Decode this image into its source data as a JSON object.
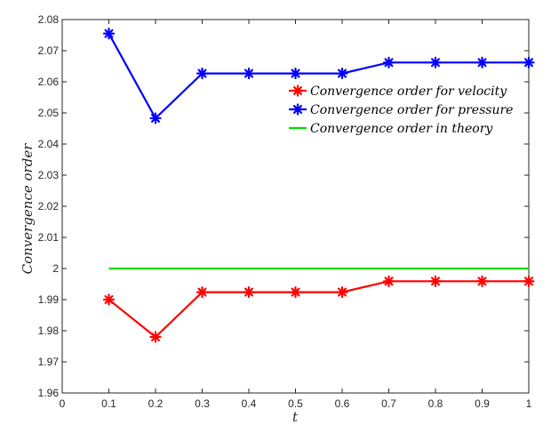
{
  "chart_data": {
    "type": "line",
    "xlabel": "t",
    "ylabel": "Convergence order",
    "xlim": [
      0,
      1
    ],
    "ylim": [
      1.96,
      2.08
    ],
    "xticks": [
      "0",
      "0.1",
      "0.2",
      "0.3",
      "0.4",
      "0.5",
      "0.6",
      "0.7",
      "0.8",
      "0.9",
      "1"
    ],
    "yticks": [
      "1.96",
      "1.97",
      "1.98",
      "1.99",
      "2",
      "2.01",
      "2.02",
      "2.03",
      "2.04",
      "2.05",
      "2.06",
      "2.07",
      "2.08"
    ],
    "grid": false,
    "legend_position": "top-right",
    "x": [
      0.1,
      0.2,
      0.3,
      0.4,
      0.5,
      0.6,
      0.7,
      0.8,
      0.9,
      1.0
    ],
    "series": [
      {
        "name": "Convergence order for velocity",
        "color": "#ff0000",
        "marker": "asterisk",
        "values": [
          1.99,
          1.978,
          1.9924,
          1.9924,
          1.9924,
          1.9924,
          1.9959,
          1.9959,
          1.9959,
          1.9959
        ]
      },
      {
        "name": "Convergence order for pressure",
        "color": "#0000ff",
        "marker": "asterisk",
        "values": [
          2.0755,
          2.0483,
          2.0627,
          2.0627,
          2.0627,
          2.0627,
          2.0662,
          2.0662,
          2.0662,
          2.0662
        ]
      },
      {
        "name": "Convergence order in theory",
        "color": "#00dd00",
        "marker": "none",
        "values": [
          2.0,
          2.0,
          2.0,
          2.0,
          2.0,
          2.0,
          2.0,
          2.0,
          2.0,
          2.0
        ]
      }
    ]
  }
}
